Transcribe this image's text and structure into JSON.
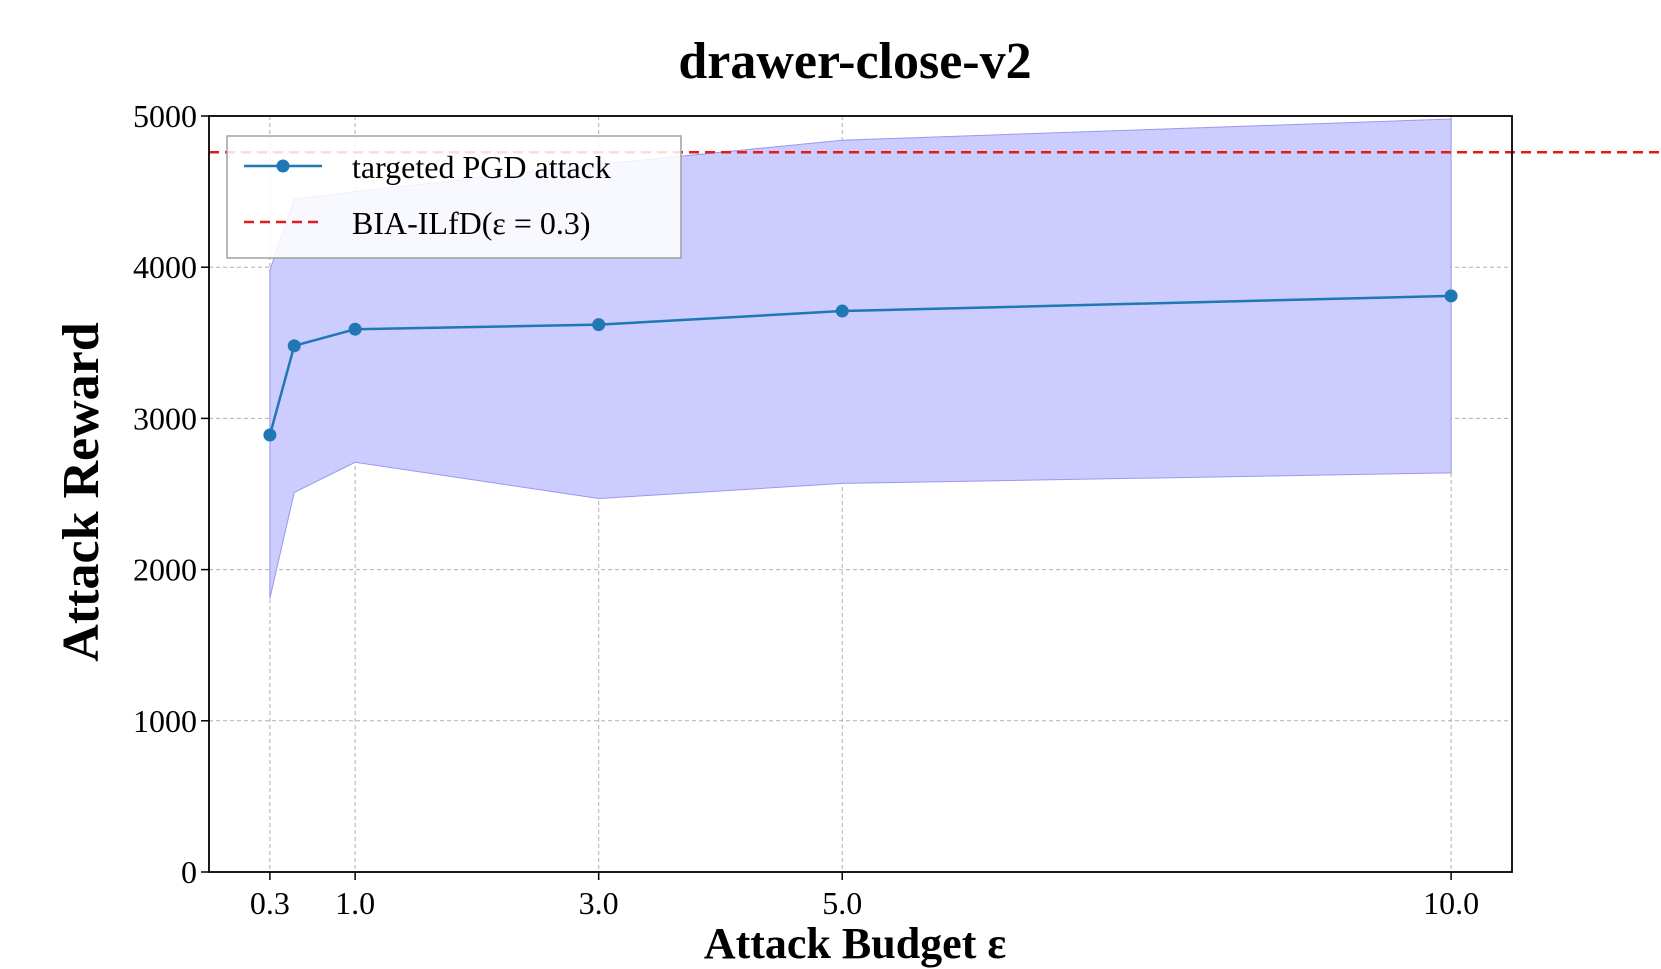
{
  "chart_data": {
    "type": "line",
    "title": "drawer-close-v2",
    "xlabel": "Attack Budget ε",
    "ylabel": "Attack Reward",
    "x_ticks": [
      "0.3",
      "1.0",
      "3.0",
      "5.0",
      "10.0"
    ],
    "y_ticks": [
      "0",
      "1000",
      "2000",
      "3000",
      "4000",
      "5000"
    ],
    "xlim": [
      -0.2,
      10.5
    ],
    "ylim": [
      0,
      5000
    ],
    "grid": true,
    "legend_position": "top-left",
    "series": [
      {
        "name": "targeted PGD attack",
        "color": "#1f77b4",
        "x": [
          0.3,
          0.5,
          1.0,
          3.0,
          5.0,
          10.0
        ],
        "y": [
          2890,
          3480,
          3590,
          3620,
          3710,
          3810
        ],
        "band_upper": [
          3980,
          4450,
          4500,
          4680,
          4840,
          4980
        ],
        "band_lower": [
          1810,
          2510,
          2710,
          2470,
          2570,
          2640
        ],
        "band_color": "#ccccff"
      }
    ],
    "reference_line": {
      "name": "BIA-ILfD(ε = 0.3)",
      "y": 4760,
      "color": "#e41a1c",
      "style": "dashed"
    }
  }
}
